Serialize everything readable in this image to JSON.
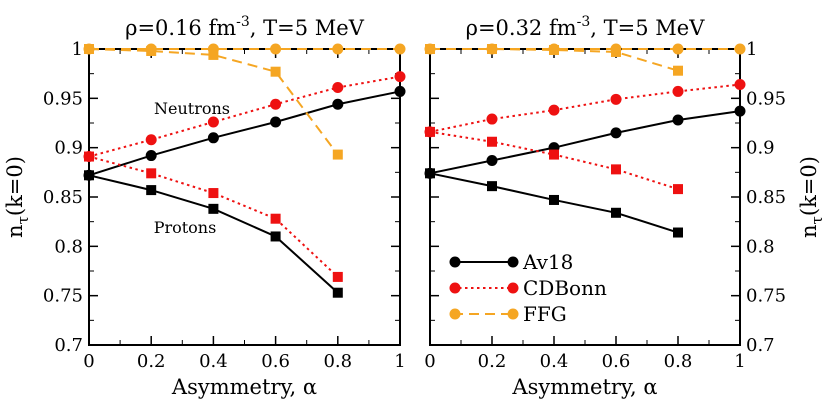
{
  "chart_data": [
    {
      "type": "line",
      "title": "ρ=0.16 fm⁻³, T=5 MeV",
      "title_parts": {
        "pre": "ρ=0.16 fm",
        "sup": "-3",
        "post": ", T=5 MeV"
      },
      "xlabel": "Asymmetry, α",
      "ylabel": "n",
      "ylabel_sub": "τ",
      "ylabel_post": "(k=0)",
      "xlim": [
        0,
        1
      ],
      "ylim": [
        0.7,
        1.0
      ],
      "xticks": [
        "0",
        "0.2",
        "0.4",
        "0.6",
        "0.8",
        "1"
      ],
      "yticks": [
        "0.7",
        "0.75",
        "0.8",
        "0.85",
        "0.9",
        "0.95",
        "1"
      ],
      "annotations": [
        "Neutrons",
        "Protons"
      ],
      "series": [
        {
          "name": "Av18 neutrons",
          "color": "#000000",
          "marker": "circle",
          "style": "solid",
          "x": [
            0,
            0.2,
            0.4,
            0.6,
            0.8,
            1.0
          ],
          "y": [
            0.872,
            0.892,
            0.91,
            0.926,
            0.944,
            0.957
          ]
        },
        {
          "name": "Av18 protons",
          "color": "#000000",
          "marker": "square",
          "style": "solid",
          "x": [
            0,
            0.2,
            0.4,
            0.6,
            0.8
          ],
          "y": [
            0.872,
            0.857,
            0.838,
            0.81,
            0.753
          ]
        },
        {
          "name": "CDBonn neutrons",
          "color": "#ee1111",
          "marker": "circle",
          "style": "dotted",
          "x": [
            0,
            0.2,
            0.4,
            0.6,
            0.8,
            1.0
          ],
          "y": [
            0.891,
            0.908,
            0.926,
            0.944,
            0.961,
            0.972
          ]
        },
        {
          "name": "CDBonn protons",
          "color": "#ee1111",
          "marker": "square",
          "style": "dotted",
          "x": [
            0,
            0.2,
            0.4,
            0.6,
            0.8
          ],
          "y": [
            0.891,
            0.874,
            0.854,
            0.828,
            0.769
          ]
        },
        {
          "name": "FFG neutrons",
          "color": "#f5a623",
          "marker": "circle",
          "style": "dashed",
          "x": [
            0,
            0.2,
            0.4,
            0.6,
            0.8,
            1.0
          ],
          "y": [
            1.0,
            1.0,
            1.0,
            1.0,
            1.0,
            1.0
          ]
        },
        {
          "name": "FFG protons",
          "color": "#f5a623",
          "marker": "square",
          "style": "dashed",
          "x": [
            0,
            0.2,
            0.4,
            0.6,
            0.8
          ],
          "y": [
            1.0,
            0.998,
            0.994,
            0.977,
            0.893
          ]
        }
      ]
    },
    {
      "type": "line",
      "title": "ρ=0.32 fm⁻³, T=5 MeV",
      "title_parts": {
        "pre": "ρ=0.32 fm",
        "sup": "-3",
        "post": ", T=5 MeV"
      },
      "xlabel": "Asymmetry, α",
      "ylabel": "n",
      "ylabel_sub": "τ",
      "ylabel_post": "(k=0)",
      "xlim": [
        0,
        1
      ],
      "ylim": [
        0.7,
        1.0
      ],
      "xticks": [
        "0",
        "0.2",
        "0.4",
        "0.6",
        "0.8",
        "1"
      ],
      "yticks": [
        "0.7",
        "0.75",
        "0.8",
        "0.85",
        "0.9",
        "0.95",
        "1"
      ],
      "legend": [
        "Av18",
        "CDBonn",
        "FFG"
      ],
      "legend_position": "bottom-left",
      "series": [
        {
          "name": "Av18 neutrons",
          "color": "#000000",
          "marker": "circle",
          "style": "solid",
          "x": [
            0,
            0.2,
            0.4,
            0.6,
            0.8,
            1.0
          ],
          "y": [
            0.874,
            0.887,
            0.9,
            0.915,
            0.928,
            0.937
          ]
        },
        {
          "name": "Av18 protons",
          "color": "#000000",
          "marker": "square",
          "style": "solid",
          "x": [
            0,
            0.2,
            0.4,
            0.6,
            0.8
          ],
          "y": [
            0.874,
            0.861,
            0.847,
            0.834,
            0.814
          ]
        },
        {
          "name": "CDBonn neutrons",
          "color": "#ee1111",
          "marker": "circle",
          "style": "dotted",
          "x": [
            0,
            0.2,
            0.4,
            0.6,
            0.8,
            1.0
          ],
          "y": [
            0.916,
            0.929,
            0.938,
            0.949,
            0.957,
            0.964
          ]
        },
        {
          "name": "CDBonn protons",
          "color": "#ee1111",
          "marker": "square",
          "style": "dotted",
          "x": [
            0,
            0.2,
            0.4,
            0.6,
            0.8
          ],
          "y": [
            0.916,
            0.906,
            0.893,
            0.878,
            0.858
          ]
        },
        {
          "name": "FFG neutrons",
          "color": "#f5a623",
          "marker": "circle",
          "style": "dashed",
          "x": [
            0,
            0.2,
            0.4,
            0.6,
            0.8,
            1.0
          ],
          "y": [
            1.0,
            1.0,
            1.0,
            1.0,
            1.0,
            1.0
          ]
        },
        {
          "name": "FFG protons",
          "color": "#f5a623",
          "marker": "square",
          "style": "dashed",
          "x": [
            0,
            0.2,
            0.4,
            0.6,
            0.8
          ],
          "y": [
            1.0,
            1.0,
            0.999,
            0.997,
            0.978
          ]
        }
      ]
    }
  ]
}
